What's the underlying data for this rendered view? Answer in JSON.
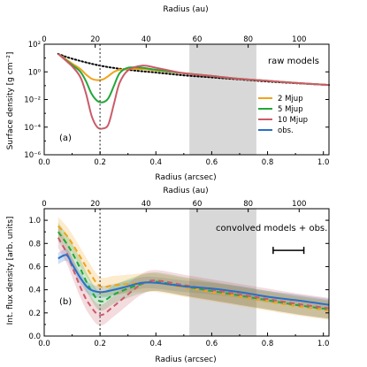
{
  "chart_data": [
    {
      "type": "line",
      "panel_label": "(a)",
      "annotation": "raw models",
      "xlabel": "Radius (arcsec)",
      "xlabel_top": "Radius (au)",
      "ylabel": "Surface density [g cm⁻²]",
      "xlim": [
        0,
        1.02
      ],
      "ylim_log10": [
        -6,
        2
      ],
      "y_scale": "log",
      "x_ticks": [
        "0.0",
        "0.2",
        "0.4",
        "0.6",
        "0.8",
        "1.0"
      ],
      "x_top_ticks": [
        "0",
        "20",
        "40",
        "60",
        "80",
        "100"
      ],
      "y_ticks": [
        "10⁻⁶",
        "10⁻⁴",
        "10⁻²",
        "10⁰",
        "10²"
      ],
      "shaded_region_arcsec": [
        0.52,
        0.76
      ],
      "vline_arcsec": 0.2,
      "legend_position": "right",
      "x": [
        0.05,
        0.1,
        0.13,
        0.15,
        0.17,
        0.19,
        0.21,
        0.23,
        0.25,
        0.27,
        0.3,
        0.35,
        0.4,
        0.5,
        0.6,
        0.7,
        0.8,
        0.9,
        1.02
      ],
      "series": [
        {
          "name": "2 Mjup",
          "color": "#f0a31b",
          "log10": [
            1.3,
            0.6,
            0.2,
            -0.2,
            -0.5,
            -0.6,
            -0.55,
            -0.3,
            0.0,
            0.15,
            0.2,
            0.2,
            0.1,
            -0.1,
            -0.3,
            -0.5,
            -0.65,
            -0.8,
            -0.95
          ]
        },
        {
          "name": "5 Mjup",
          "color": "#24a63a",
          "log10": [
            1.3,
            0.5,
            0.0,
            -0.7,
            -1.6,
            -2.1,
            -2.2,
            -1.9,
            -1.0,
            -0.1,
            0.3,
            0.3,
            0.15,
            -0.1,
            -0.3,
            -0.5,
            -0.65,
            -0.8,
            -0.95
          ]
        },
        {
          "name": "10 Mjup",
          "color": "#cb5b6a",
          "log10": [
            1.3,
            0.4,
            -0.4,
            -1.6,
            -3.2,
            -4.0,
            -4.1,
            -3.8,
            -2.3,
            -0.8,
            0.1,
            0.45,
            0.3,
            -0.1,
            -0.3,
            -0.5,
            -0.65,
            -0.8,
            -0.95
          ]
        }
      ],
      "legend_entries": [
        {
          "name": "2 Mjup",
          "color": "#f0a31b"
        },
        {
          "name": "5 Mjup",
          "color": "#24a63a"
        },
        {
          "name": "10 Mjup",
          "color": "#cb5b6a"
        },
        {
          "name": "obs.",
          "color": "#2a6fc8"
        }
      ],
      "reference_curve": {
        "style": "dotted",
        "color": "#000000",
        "x": [
          0.05,
          0.1,
          0.2,
          0.3,
          0.4,
          0.5,
          0.6,
          0.7,
          0.8,
          0.9,
          1.02
        ],
        "log10": [
          1.3,
          0.95,
          0.45,
          0.15,
          -0.05,
          -0.25,
          -0.4,
          -0.55,
          -0.7,
          -0.82,
          -0.95
        ]
      }
    },
    {
      "type": "line",
      "panel_label": "(b)",
      "annotation": "convolved models + obs.",
      "xlabel": "Radius (arcsec)",
      "xlabel_top": "Radius (au)",
      "ylabel": "Int. flux density [arb. units]",
      "xlim": [
        0,
        1.02
      ],
      "ylim": [
        0,
        1.1
      ],
      "x_ticks": [
        "0.0",
        "0.2",
        "0.4",
        "0.6",
        "0.8",
        "1.0"
      ],
      "x_top_ticks": [
        "0",
        "20",
        "40",
        "60",
        "80",
        "100"
      ],
      "y_ticks": [
        "0.0",
        "0.2",
        "0.4",
        "0.6",
        "0.8",
        "1.0"
      ],
      "shaded_region_arcsec": [
        0.52,
        0.76
      ],
      "vline_arcsec": 0.2,
      "beam_bar_arcsec": [
        0.82,
        0.93
      ],
      "beam_bar_y": 0.74,
      "series": [
        {
          "name": "obs.",
          "color": "#2a6fc8",
          "style": "solid",
          "x": [
            0.05,
            0.08,
            0.1,
            0.13,
            0.16,
            0.2,
            0.25,
            0.3,
            0.35,
            0.4,
            0.5,
            0.6,
            0.7,
            0.8,
            0.9,
            1.02
          ],
          "y": [
            0.67,
            0.7,
            0.62,
            0.5,
            0.41,
            0.38,
            0.4,
            0.43,
            0.46,
            0.46,
            0.43,
            0.41,
            0.38,
            0.34,
            0.31,
            0.27
          ],
          "band": 0.05
        },
        {
          "name": "2 Mjup",
          "color": "#f0a31b",
          "style": "dashed",
          "x": [
            0.05,
            0.08,
            0.1,
            0.13,
            0.16,
            0.2,
            0.25,
            0.3,
            0.35,
            0.4,
            0.5,
            0.6,
            0.7,
            0.8,
            0.9,
            1.02
          ],
          "y": [
            0.95,
            0.87,
            0.8,
            0.68,
            0.56,
            0.43,
            0.44,
            0.45,
            0.46,
            0.46,
            0.42,
            0.38,
            0.34,
            0.3,
            0.26,
            0.22
          ],
          "band": 0.08
        },
        {
          "name": "5 Mjup",
          "color": "#24a63a",
          "style": "dashed",
          "x": [
            0.05,
            0.08,
            0.1,
            0.13,
            0.16,
            0.2,
            0.25,
            0.3,
            0.35,
            0.4,
            0.5,
            0.6,
            0.7,
            0.8,
            0.9,
            1.02
          ],
          "y": [
            0.9,
            0.8,
            0.72,
            0.58,
            0.43,
            0.3,
            0.36,
            0.41,
            0.45,
            0.47,
            0.43,
            0.39,
            0.35,
            0.31,
            0.27,
            0.23
          ],
          "band": 0.08
        },
        {
          "name": "10 Mjup",
          "color": "#cb5b6a",
          "style": "dashed",
          "x": [
            0.05,
            0.08,
            0.1,
            0.13,
            0.16,
            0.2,
            0.25,
            0.3,
            0.35,
            0.4,
            0.5,
            0.6,
            0.7,
            0.8,
            0.9,
            1.02
          ],
          "y": [
            0.85,
            0.72,
            0.6,
            0.42,
            0.28,
            0.18,
            0.26,
            0.36,
            0.45,
            0.48,
            0.44,
            0.4,
            0.36,
            0.32,
            0.28,
            0.24
          ],
          "band": 0.09
        }
      ]
    }
  ]
}
